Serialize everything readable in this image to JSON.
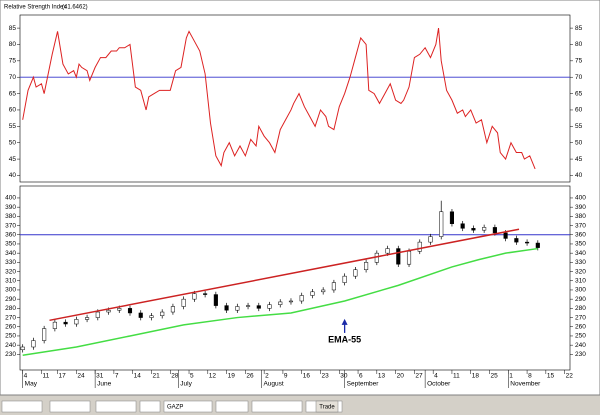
{
  "chart_data": [
    {
      "type": "line",
      "title": "Relative Strength Index",
      "value_label": "(41.6462)",
      "ylim": [
        38,
        89
      ],
      "yticks": [
        40,
        45,
        50,
        55,
        60,
        65,
        70,
        75,
        80,
        85
      ],
      "xlim": [
        -1,
        204
      ],
      "hlines": [
        {
          "value": 70,
          "color": "#3333cc"
        }
      ],
      "lines": [
        {
          "color": "#dd2222",
          "x": [
            0,
            2,
            4,
            5,
            7,
            8,
            10,
            11,
            13,
            15,
            17,
            19,
            20,
            21,
            22,
            24,
            25,
            27,
            29,
            31,
            33,
            35,
            36,
            38,
            40,
            42,
            44,
            46,
            47,
            49,
            51,
            52,
            55,
            57,
            59,
            61,
            62,
            64,
            66,
            68,
            70,
            72,
            74,
            75,
            77,
            79,
            81,
            83,
            85,
            87,
            88,
            90,
            92,
            94,
            96,
            98,
            100,
            101,
            103,
            105,
            107,
            109,
            111,
            113,
            114,
            116,
            118,
            120,
            122,
            124,
            126,
            128,
            129,
            131,
            133,
            135,
            137,
            139,
            141,
            142,
            144,
            146,
            148,
            150,
            152,
            154,
            155,
            156,
            158,
            160,
            162,
            164,
            165,
            167,
            169,
            171,
            173,
            175,
            177,
            178,
            180,
            182,
            184,
            186,
            187,
            189,
            191
          ],
          "values": [
            57,
            66,
            70,
            67,
            68,
            65,
            73,
            77,
            84,
            74,
            71,
            72,
            70,
            74,
            73,
            72,
            69,
            73,
            76,
            76,
            78,
            78,
            79,
            79,
            80,
            67,
            66,
            60,
            64,
            65,
            66,
            66,
            66,
            72,
            73,
            82,
            84,
            81,
            78,
            71,
            56,
            46,
            43,
            47,
            50,
            46,
            49,
            46,
            51,
            49,
            55,
            52,
            50,
            47,
            54,
            57,
            60,
            62,
            65,
            61,
            58,
            55,
            60,
            58,
            55,
            54,
            61,
            65,
            70,
            76,
            82,
            80,
            66,
            65,
            62,
            65,
            68,
            63,
            62,
            63,
            67,
            76,
            77,
            79,
            76,
            80,
            85,
            75,
            66,
            63,
            59,
            60,
            58,
            60,
            56,
            57,
            50,
            55,
            53,
            47,
            45,
            50,
            47,
            47,
            45,
            46,
            42
          ]
        }
      ]
    },
    {
      "type": "candlestick",
      "annotation": "EMA-55",
      "ylim": [
        213,
        413
      ],
      "yticks": [
        230,
        240,
        250,
        260,
        270,
        280,
        290,
        300,
        310,
        320,
        330,
        340,
        350,
        360,
        370,
        380,
        390,
        400
      ],
      "xlim": [
        -1,
        204
      ],
      "xticks": [
        {
          "value": 0,
          "label": "4"
        },
        {
          "value": 7,
          "label": "11"
        },
        {
          "value": 13,
          "label": "17"
        },
        {
          "value": 20,
          "label": "24"
        },
        {
          "value": 27,
          "label": "31"
        },
        {
          "value": 34,
          "label": "7"
        },
        {
          "value": 41,
          "label": "14"
        },
        {
          "value": 48,
          "label": "21"
        },
        {
          "value": 55,
          "label": "28"
        },
        {
          "value": 62,
          "label": "5"
        },
        {
          "value": 69,
          "label": "12"
        },
        {
          "value": 76,
          "label": "19"
        },
        {
          "value": 83,
          "label": "26"
        },
        {
          "value": 90,
          "label": "2"
        },
        {
          "value": 97,
          "label": "9"
        },
        {
          "value": 104,
          "label": "16"
        },
        {
          "value": 111,
          "label": "23"
        },
        {
          "value": 118,
          "label": "30"
        },
        {
          "value": 125,
          "label": "6"
        },
        {
          "value": 132,
          "label": "13"
        },
        {
          "value": 139,
          "label": "20"
        },
        {
          "value": 146,
          "label": "27"
        },
        {
          "value": 153,
          "label": "4"
        },
        {
          "value": 160,
          "label": "11"
        },
        {
          "value": 167,
          "label": "18"
        },
        {
          "value": 174,
          "label": "25"
        },
        {
          "value": 181,
          "label": "1"
        },
        {
          "value": 188,
          "label": "8"
        },
        {
          "value": 195,
          "label": "15"
        },
        {
          "value": 202,
          "label": "22"
        }
      ],
      "months": [
        {
          "value": 0,
          "label": "May"
        },
        {
          "value": 27,
          "label": "June"
        },
        {
          "value": 58,
          "label": "July"
        },
        {
          "value": 89,
          "label": "August"
        },
        {
          "value": 120,
          "label": "September"
        },
        {
          "value": 150,
          "label": "October"
        },
        {
          "value": 181,
          "label": "November"
        }
      ],
      "hlines": [
        {
          "value": 360,
          "color": "#3333cc"
        }
      ],
      "candles": {
        "x": [
          0,
          4,
          8,
          12,
          16,
          20,
          24,
          28,
          32,
          36,
          40,
          44,
          48,
          52,
          56,
          60,
          64,
          68,
          72,
          76,
          80,
          84,
          88,
          92,
          96,
          100,
          104,
          108,
          112,
          116,
          120,
          124,
          128,
          132,
          136,
          140,
          144,
          148,
          152,
          156,
          160,
          164,
          168,
          172,
          176,
          180,
          184,
          188,
          192
        ],
        "open": [
          235,
          238,
          245,
          258,
          265,
          263,
          268,
          270,
          276,
          278,
          280,
          275,
          270,
          272,
          276,
          282,
          290,
          296,
          295,
          283,
          278,
          282,
          283,
          280,
          284,
          287,
          288,
          294,
          298,
          300,
          308,
          315,
          322,
          330,
          340,
          345,
          328,
          342,
          352,
          358,
          385,
          372,
          367,
          365,
          368,
          362,
          356,
          352,
          351
        ],
        "close": [
          238,
          245,
          258,
          265,
          263,
          268,
          270,
          276,
          278,
          280,
          275,
          270,
          272,
          276,
          282,
          290,
          296,
          295,
          283,
          278,
          282,
          283,
          280,
          284,
          287,
          288,
          294,
          298,
          300,
          308,
          315,
          322,
          330,
          340,
          345,
          328,
          342,
          352,
          358,
          385,
          372,
          367,
          365,
          368,
          362,
          356,
          352,
          351,
          346
        ],
        "high": [
          241,
          248,
          261,
          268,
          268,
          271,
          273,
          279,
          281,
          283,
          283,
          278,
          275,
          279,
          285,
          293,
          299,
          299,
          298,
          286,
          285,
          286,
          286,
          287,
          290,
          291,
          297,
          301,
          303,
          311,
          318,
          325,
          333,
          343,
          348,
          348,
          345,
          355,
          361,
          397,
          388,
          375,
          370,
          371,
          371,
          365,
          359,
          355,
          354
        ],
        "low": [
          232,
          235,
          242,
          255,
          260,
          260,
          265,
          267,
          273,
          275,
          272,
          267,
          267,
          269,
          273,
          279,
          287,
          292,
          280,
          275,
          275,
          279,
          277,
          277,
          281,
          284,
          285,
          291,
          295,
          297,
          305,
          312,
          319,
          327,
          337,
          325,
          325,
          339,
          349,
          355,
          369,
          364,
          362,
          362,
          359,
          353,
          349,
          348,
          343
        ]
      },
      "lines": [
        {
          "color": "#44dd44",
          "x": [
            0,
            20,
            40,
            60,
            80,
            100,
            120,
            140,
            160,
            170,
            180,
            192
          ],
          "values": [
            229,
            238,
            250,
            262,
            270,
            275,
            288,
            305,
            325,
            333,
            340,
            345
          ]
        },
        {
          "color": "#cc2222",
          "x": [
            10,
            185
          ],
          "values": [
            267,
            366
          ]
        }
      ]
    }
  ],
  "toolbar": {
    "symbol": "GAZP",
    "button": "Trade"
  }
}
